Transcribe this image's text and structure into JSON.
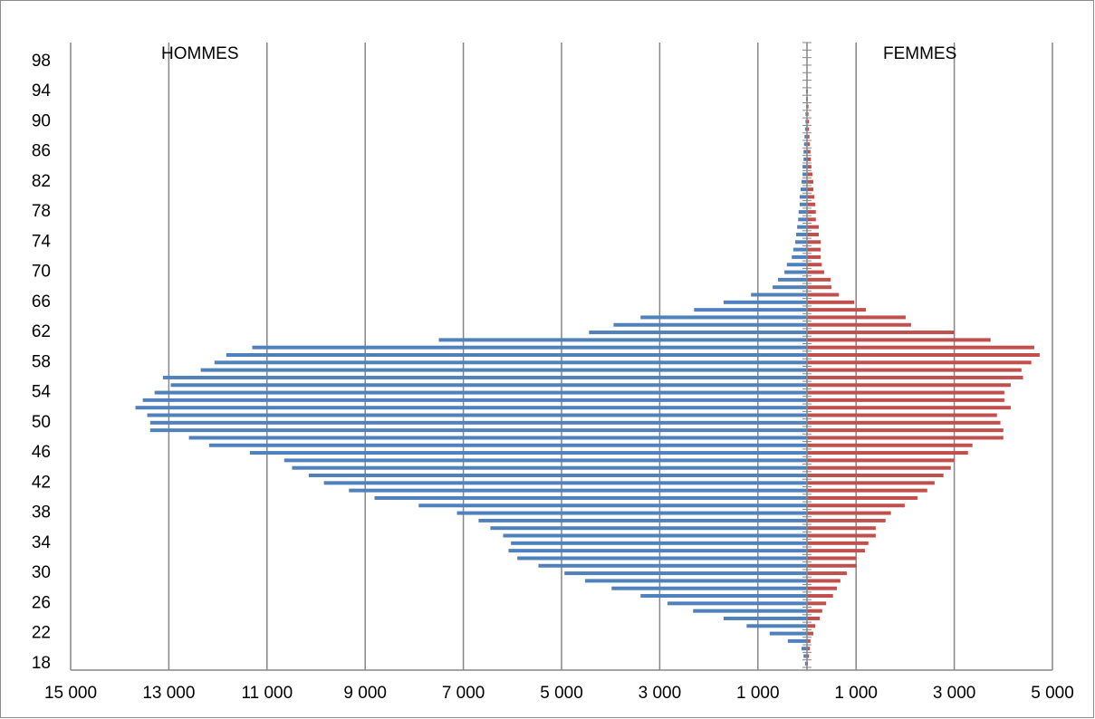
{
  "chart_data": {
    "type": "pyramid",
    "categories": [
      "18",
      null,
      null,
      null,
      "22",
      null,
      null,
      null,
      "26",
      null,
      null,
      null,
      "30",
      null,
      null,
      null,
      "34",
      null,
      null,
      null,
      "38",
      null,
      null,
      null,
      "42",
      null,
      null,
      null,
      "46",
      null,
      null,
      null,
      "50",
      null,
      null,
      null,
      "54",
      null,
      null,
      null,
      "58",
      null,
      null,
      null,
      "62",
      null,
      null,
      null,
      "66",
      null,
      null,
      null,
      "70",
      null,
      null,
      null,
      "74",
      null,
      null,
      null,
      "78",
      null,
      null,
      null,
      "82",
      null,
      null,
      null,
      "86",
      null,
      null,
      null,
      "90",
      null,
      null,
      null,
      "94",
      null,
      null,
      null,
      "98",
      null,
      null
    ],
    "series": [
      {
        "name": "HOMMES",
        "color": "#4f81bd",
        "values": [
          -40,
          -70,
          -110,
          -390,
          -760,
          -1230,
          -1700,
          -2320,
          -2840,
          -3390,
          -3980,
          -4520,
          -4940,
          -5470,
          -5900,
          -6080,
          -6030,
          -6190,
          -6450,
          -6690,
          -7130,
          -7910,
          -8810,
          -9330,
          -9840,
          -10150,
          -10490,
          -10650,
          -11350,
          -12180,
          -12590,
          -13380,
          -13380,
          -13440,
          -13680,
          -13530,
          -13290,
          -12960,
          -13120,
          -12350,
          -12070,
          -11830,
          -11300,
          -7500,
          -4440,
          -3940,
          -3390,
          -2300,
          -1700,
          -1140,
          -700,
          -590,
          -460,
          -410,
          -310,
          -280,
          -240,
          -220,
          -200,
          -180,
          -170,
          -150,
          -150,
          -130,
          -110,
          -90,
          -90,
          -70,
          -70,
          -60,
          -50,
          -40,
          -30,
          -30,
          -20,
          -20,
          -20,
          -10,
          -10,
          -10,
          -10,
          -10,
          0
        ]
      },
      {
        "name": "FEMMES",
        "color": "#c0504d",
        "values": [
          20,
          40,
          60,
          70,
          130,
          170,
          260,
          310,
          390,
          530,
          610,
          680,
          810,
          1010,
          1000,
          1180,
          1250,
          1400,
          1400,
          1600,
          1710,
          1990,
          2250,
          2450,
          2600,
          2780,
          2930,
          3000,
          3280,
          3370,
          4000,
          4000,
          3940,
          3870,
          4150,
          4020,
          4020,
          4150,
          4400,
          4370,
          4570,
          4740,
          4630,
          3740,
          3000,
          2120,
          2010,
          1200,
          960,
          650,
          500,
          480,
          350,
          300,
          280,
          280,
          280,
          240,
          240,
          180,
          180,
          170,
          150,
          130,
          130,
          110,
          90,
          80,
          70,
          60,
          50,
          40,
          40,
          30,
          30,
          20,
          20,
          10,
          10,
          10,
          10,
          0,
          0
        ]
      }
    ],
    "xlim": [
      -15000,
      5000
    ],
    "xticks": [
      {
        "value": -15000,
        "label": "15 000"
      },
      {
        "value": -13000,
        "label": "13 000"
      },
      {
        "value": -11000,
        "label": "11 000"
      },
      {
        "value": -9000,
        "label": "9 000"
      },
      {
        "value": -7000,
        "label": "7 000"
      },
      {
        "value": -5000,
        "label": "5 000"
      },
      {
        "value": -3000,
        "label": "3 000"
      },
      {
        "value": -1000,
        "label": "1 000"
      },
      {
        "value": 1000,
        "label": "1 000"
      },
      {
        "value": 3000,
        "label": "3 000"
      },
      {
        "value": 5000,
        "label": "5 000"
      }
    ],
    "grid": true,
    "negative_tick_label_color": "#ff0000",
    "tick_label_color": "#000000"
  }
}
